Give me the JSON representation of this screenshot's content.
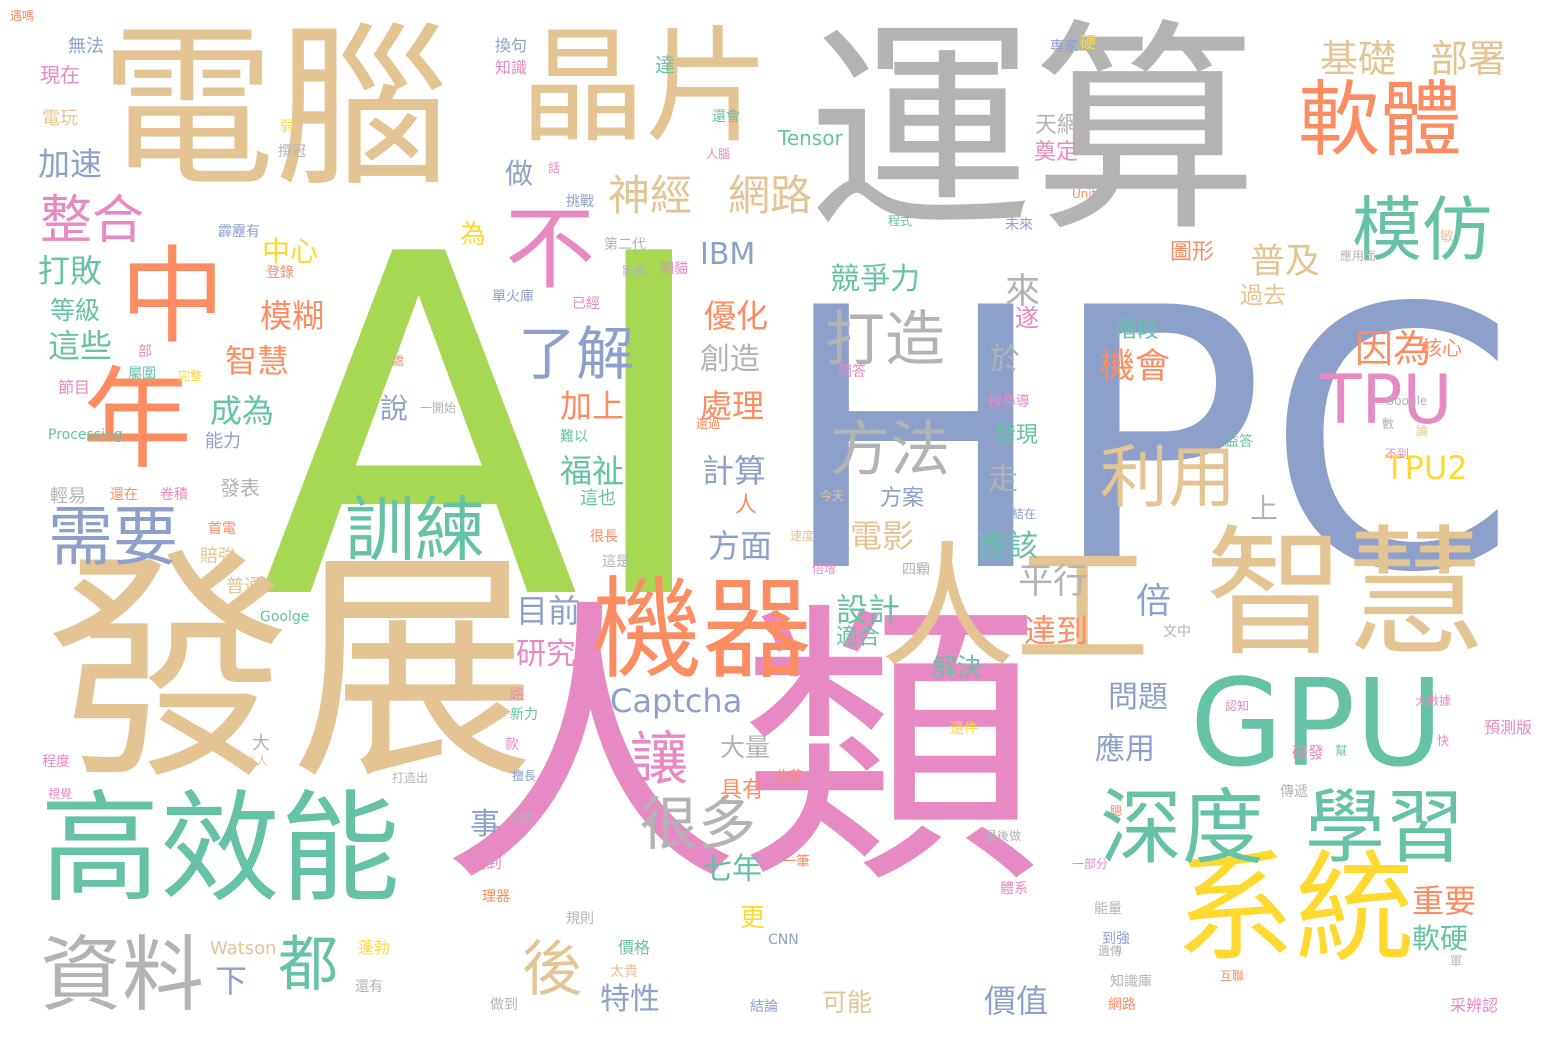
{
  "colors": {
    "green": "#a6d854",
    "blue": "#8da0cb",
    "pink": "#e78ac3",
    "tan": "#e5c494",
    "gray": "#b3b3b3",
    "orange": "#fc8d62",
    "teal": "#66c2a5",
    "yellow": "#ffd92f"
  },
  "words": [
    {
      "text": "AI",
      "color": "green"
    },
    {
      "text": "HPC",
      "color": "blue"
    },
    {
      "text": "運算",
      "color": "gray"
    },
    {
      "text": "人類",
      "color": "pink"
    },
    {
      "text": "發展",
      "color": "tan"
    },
    {
      "text": "電腦",
      "color": "tan"
    },
    {
      "text": "晶片",
      "color": "tan"
    },
    {
      "text": "智慧",
      "color": "tan"
    },
    {
      "text": "人工",
      "color": "tan"
    },
    {
      "text": "機器",
      "color": "orange"
    },
    {
      "text": "系統",
      "color": "yellow"
    },
    {
      "text": "GPU",
      "color": "teal"
    },
    {
      "text": "高效能",
      "color": "teal"
    },
    {
      "text": "中",
      "color": "orange"
    },
    {
      "text": "年",
      "color": "orange"
    },
    {
      "text": "軟體",
      "color": "orange"
    },
    {
      "text": "學習",
      "color": "teal"
    },
    {
      "text": "深度",
      "color": "teal"
    },
    {
      "text": "資料",
      "color": "gray"
    },
    {
      "text": "不",
      "color": "pink"
    },
    {
      "text": "訓練",
      "color": "teal"
    },
    {
      "text": "模仿",
      "color": "teal"
    },
    {
      "text": "需要",
      "color": "blue"
    },
    {
      "text": "利用",
      "color": "tan"
    },
    {
      "text": "TPU",
      "color": "pink"
    },
    {
      "text": "整合",
      "color": "pink"
    },
    {
      "text": "後",
      "color": "tan"
    },
    {
      "text": "都",
      "color": "teal"
    },
    {
      "text": "讓",
      "color": "pink"
    },
    {
      "text": "很多",
      "color": "gray"
    },
    {
      "text": "方法",
      "color": "gray"
    },
    {
      "text": "打造",
      "color": "gray"
    },
    {
      "text": "了解",
      "color": "blue"
    },
    {
      "text": "神經",
      "color": "tan"
    },
    {
      "text": "網路",
      "color": "tan"
    },
    {
      "text": "基礎",
      "color": "tan"
    },
    {
      "text": "部署",
      "color": "tan"
    },
    {
      "text": "TPU2",
      "color": "yellow"
    },
    {
      "text": "Captcha",
      "color": "blue"
    },
    {
      "text": "因為",
      "color": "orange"
    },
    {
      "text": "機會",
      "color": "orange"
    },
    {
      "text": "普及",
      "color": "tan"
    },
    {
      "text": "IBM",
      "color": "blue"
    },
    {
      "text": "優化",
      "color": "orange"
    },
    {
      "text": "處理",
      "color": "orange"
    },
    {
      "text": "加上",
      "color": "orange"
    },
    {
      "text": "福祉",
      "color": "teal"
    },
    {
      "text": "電影",
      "color": "tan"
    },
    {
      "text": "設計",
      "color": "teal"
    },
    {
      "text": "平行",
      "color": "gray"
    },
    {
      "text": "倍",
      "color": "blue"
    },
    {
      "text": "達到",
      "color": "orange"
    },
    {
      "text": "目前",
      "color": "blue"
    },
    {
      "text": "研究",
      "color": "pink"
    },
    {
      "text": "應該",
      "color": "teal"
    },
    {
      "text": "競爭力",
      "color": "teal"
    },
    {
      "text": "走",
      "color": "gray"
    },
    {
      "text": "來",
      "color": "gray"
    },
    {
      "text": "遂",
      "color": "pink"
    },
    {
      "text": "於",
      "color": "gray"
    },
    {
      "text": "上",
      "color": "gray"
    },
    {
      "text": "問題",
      "color": "blue"
    },
    {
      "text": "應用",
      "color": "blue"
    },
    {
      "text": "重要",
      "color": "orange"
    },
    {
      "text": "軟硬",
      "color": "teal"
    },
    {
      "text": "大量",
      "color": "gray"
    },
    {
      "text": "事",
      "color": "blue"
    },
    {
      "text": "七年",
      "color": "teal"
    },
    {
      "text": "更",
      "color": "yellow"
    },
    {
      "text": "具有",
      "color": "orange"
    },
    {
      "text": "特性",
      "color": "blue"
    },
    {
      "text": "價值",
      "color": "blue"
    },
    {
      "text": "可能",
      "color": "tan"
    },
    {
      "text": "方面",
      "color": "blue"
    },
    {
      "text": "計算",
      "color": "blue"
    },
    {
      "text": "人",
      "color": "orange"
    },
    {
      "text": "創造",
      "color": "gray"
    },
    {
      "text": "解決",
      "color": "teal"
    },
    {
      "text": "這些",
      "color": "teal"
    },
    {
      "text": "成為",
      "color": "teal"
    },
    {
      "text": "智慧",
      "color": "orange"
    },
    {
      "text": "模糊",
      "color": "orange"
    },
    {
      "text": "中心",
      "color": "yellow"
    },
    {
      "text": "為",
      "color": "yellow"
    },
    {
      "text": "做",
      "color": "blue"
    },
    {
      "text": "打敗",
      "color": "teal"
    },
    {
      "text": "等級",
      "color": "teal"
    },
    {
      "text": "加速",
      "color": "blue"
    },
    {
      "text": "說",
      "color": "blue"
    },
    {
      "text": "下",
      "color": "blue"
    },
    {
      "text": "適合",
      "color": "teal"
    },
    {
      "text": "過去",
      "color": "tan"
    },
    {
      "text": "階段",
      "color": "teal"
    },
    {
      "text": "核心",
      "color": "orange"
    },
    {
      "text": "發現",
      "color": "teal"
    },
    {
      "text": "圖形",
      "color": "orange"
    },
    {
      "text": "天網",
      "color": "gray"
    },
    {
      "text": "奠定",
      "color": "pink"
    },
    {
      "text": "Tensor",
      "color": "teal"
    },
    {
      "text": "方案",
      "color": "blue"
    },
    {
      "text": "無法",
      "color": "blue"
    },
    {
      "text": "現在",
      "color": "pink"
    },
    {
      "text": "電玩",
      "color": "tan"
    },
    {
      "text": "換句",
      "color": "blue"
    },
    {
      "text": "知識",
      "color": "pink"
    },
    {
      "text": "達",
      "color": "teal"
    },
    {
      "text": "專家",
      "color": "blue"
    },
    {
      "text": "硬",
      "color": "yellow"
    },
    {
      "text": "弱",
      "color": "yellow"
    },
    {
      "text": "撰冠",
      "color": "gray"
    },
    {
      "text": "還會",
      "color": "teal"
    },
    {
      "text": "人腦",
      "color": "pink"
    },
    {
      "text": "話",
      "color": "pink"
    },
    {
      "text": "挑戰",
      "color": "blue"
    },
    {
      "text": "Unit",
      "color": "orange"
    },
    {
      "text": "未來",
      "color": "blue"
    },
    {
      "text": "程式",
      "color": "teal"
    },
    {
      "text": "霹靂有",
      "color": "blue"
    },
    {
      "text": "登錄",
      "color": "orange"
    },
    {
      "text": "第二代",
      "color": "gray"
    },
    {
      "text": "影像",
      "color": "gray"
    },
    {
      "text": "關貓",
      "color": "pink"
    },
    {
      "text": "單火庫",
      "color": "blue"
    },
    {
      "text": "已經",
      "color": "pink"
    },
    {
      "text": "應用面",
      "color": "gray"
    },
    {
      "text": "部",
      "color": "pink"
    },
    {
      "text": "屬圍",
      "color": "teal"
    },
    {
      "text": "完整",
      "color": "yellow"
    },
    {
      "text": "節目",
      "color": "pink"
    },
    {
      "text": "處",
      "color": "orange"
    },
    {
      "text": "問答",
      "color": "pink"
    },
    {
      "text": "Processing",
      "color": "teal"
    },
    {
      "text": "能力",
      "color": "blue"
    },
    {
      "text": "一開始",
      "color": "gray"
    },
    {
      "text": "難以",
      "color": "teal"
    },
    {
      "text": "還過",
      "color": "orange"
    },
    {
      "text": "搜尋導",
      "color": "pink"
    },
    {
      "text": "Google",
      "color": "gray"
    },
    {
      "text": "數",
      "color": "gray"
    },
    {
      "text": "論",
      "color": "tan"
    },
    {
      "text": "不到",
      "color": "pink"
    },
    {
      "text": "益答",
      "color": "teal"
    },
    {
      "text": "輕易",
      "color": "gray"
    },
    {
      "text": "還在",
      "color": "orange"
    },
    {
      "text": "卷積",
      "color": "pink"
    },
    {
      "text": "發表",
      "color": "gray"
    },
    {
      "text": "這也",
      "color": "teal"
    },
    {
      "text": "今天",
      "color": "tan"
    },
    {
      "text": "總結在",
      "color": "blue"
    },
    {
      "text": "首電",
      "color": "orange"
    },
    {
      "text": "賠強",
      "color": "tan"
    },
    {
      "text": "很長",
      "color": "orange"
    },
    {
      "text": "速度",
      "color": "tan"
    },
    {
      "text": "這是",
      "color": "gray"
    },
    {
      "text": "倍增",
      "color": "pink"
    },
    {
      "text": "四顆",
      "color": "gray"
    },
    {
      "text": "普通",
      "color": "tan"
    },
    {
      "text": "Goolge",
      "color": "teal"
    },
    {
      "text": "文中",
      "color": "gray"
    },
    {
      "text": "路",
      "color": "pink"
    },
    {
      "text": "新力",
      "color": "teal"
    },
    {
      "text": "還件",
      "color": "yellow"
    },
    {
      "text": "認知",
      "color": "pink"
    },
    {
      "text": "大數據",
      "color": "pink"
    },
    {
      "text": "研發",
      "color": "pink"
    },
    {
      "text": "幫",
      "color": "teal"
    },
    {
      "text": "預測版",
      "color": "pink"
    },
    {
      "text": "快",
      "color": "pink"
    },
    {
      "text": "大",
      "color": "gray"
    },
    {
      "text": "比人",
      "color": "tan"
    },
    {
      "text": "程度",
      "color": "pink"
    },
    {
      "text": "視覺",
      "color": "pink"
    },
    {
      "text": "款",
      "color": "pink"
    },
    {
      "text": "擅長",
      "color": "blue"
    },
    {
      "text": "此花",
      "color": "orange"
    },
    {
      "text": "傳遞",
      "color": "gray"
    },
    {
      "text": "提到",
      "color": "pink"
    },
    {
      "text": "理器",
      "color": "orange"
    },
    {
      "text": "功臣",
      "color": "gray"
    },
    {
      "text": "一筆",
      "color": "orange"
    },
    {
      "text": "最後做",
      "color": "gray"
    },
    {
      "text": "體系",
      "color": "pink"
    },
    {
      "text": "一部分",
      "color": "pink"
    },
    {
      "text": "規則",
      "color": "gray"
    },
    {
      "text": "能量",
      "color": "gray"
    },
    {
      "text": "到強",
      "color": "blue"
    },
    {
      "text": "遺傳",
      "color": "gray"
    },
    {
      "text": "Watson",
      "color": "tan"
    },
    {
      "text": "蓬勃",
      "color": "yellow"
    },
    {
      "text": "價格",
      "color": "teal"
    },
    {
      "text": "太貴",
      "color": "tan"
    },
    {
      "text": "CNN",
      "color": "blue"
    },
    {
      "text": "互聯",
      "color": "orange"
    },
    {
      "text": "軍",
      "color": "gray"
    },
    {
      "text": "采辨認",
      "color": "pink"
    },
    {
      "text": "還有",
      "color": "gray"
    },
    {
      "text": "做到",
      "color": "gray"
    },
    {
      "text": "結論",
      "color": "blue"
    },
    {
      "text": "知識庫",
      "color": "gray"
    },
    {
      "text": "網路",
      "color": "orange"
    },
    {
      "text": "打造出",
      "color": "gray"
    },
    {
      "text": "敏",
      "color": "tan"
    },
    {
      "text": "聰",
      "color": "orange"
    },
    {
      "text": "遇嗎",
      "color": "orange"
    }
  ]
}
